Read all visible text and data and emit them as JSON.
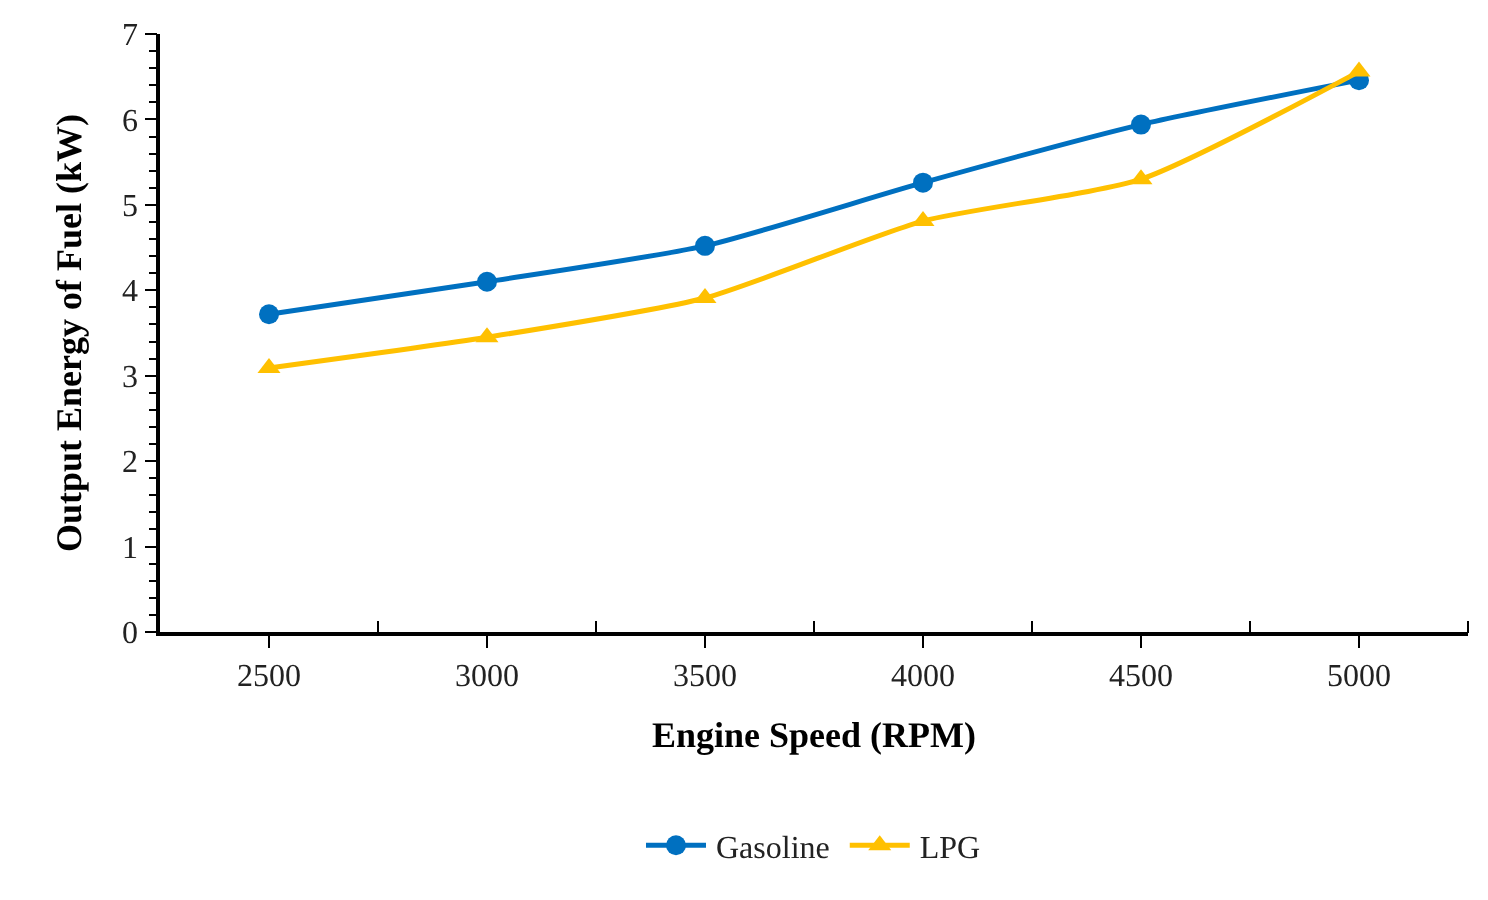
{
  "chart_data": {
    "type": "line",
    "xlabel": "Engine Speed (RPM)",
    "ylabel": "Output Energy of Fuel (kW)",
    "categories": [
      "2500",
      "3000",
      "3500",
      "4000",
      "4500",
      "5000"
    ],
    "series": [
      {
        "name": "Gasoline",
        "color": "#0070c0",
        "marker": "circle",
        "values": [
          3.72,
          4.1,
          4.52,
          5.26,
          5.94,
          6.46
        ]
      },
      {
        "name": "LPG",
        "color": "#ffc000",
        "marker": "triangle",
        "values": [
          3.09,
          3.45,
          3.91,
          4.81,
          5.3,
          6.56
        ]
      }
    ],
    "ylim": [
      0,
      7
    ],
    "yticks": [
      0,
      1,
      2,
      3,
      4,
      5,
      6,
      7
    ],
    "legend": "bottom",
    "line_style": "solid"
  }
}
